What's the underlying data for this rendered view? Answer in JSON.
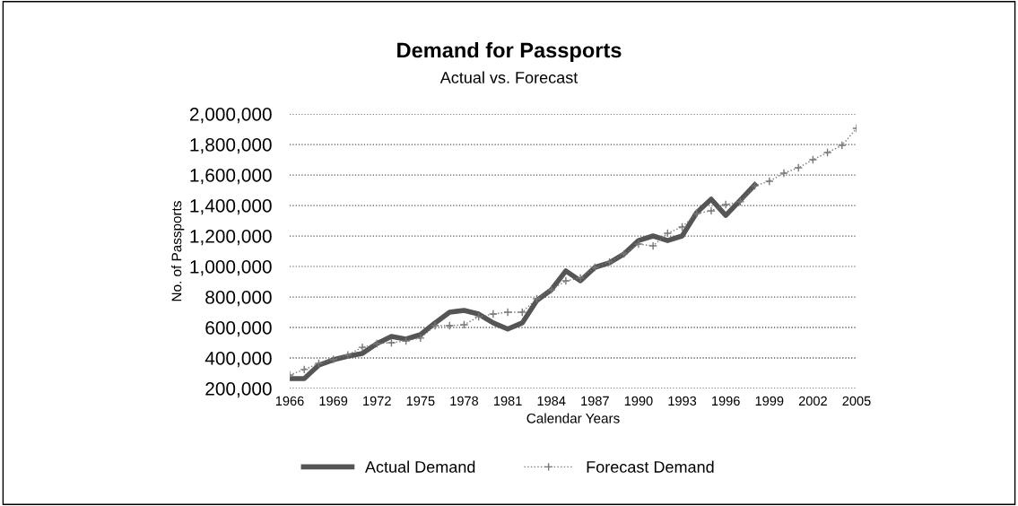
{
  "chart_data": {
    "type": "line",
    "title": "Demand for Passports",
    "subtitle": "Actual vs. Forecast",
    "xlabel": "Calendar Years",
    "ylabel": "No. of Passports",
    "x": [
      1966,
      1967,
      1968,
      1969,
      1970,
      1971,
      1972,
      1973,
      1974,
      1975,
      1976,
      1977,
      1978,
      1979,
      1980,
      1981,
      1982,
      1983,
      1984,
      1985,
      1986,
      1987,
      1988,
      1989,
      1990,
      1991,
      1992,
      1993,
      1994,
      1995,
      1996,
      1997,
      1998,
      1999,
      2000,
      2001,
      2002,
      2003,
      2004,
      2005
    ],
    "series": [
      {
        "name": "Actual Demand",
        "color": "#555555",
        "line_style": "solid",
        "marker": "none",
        "values": [
          265000,
          265000,
          353000,
          388000,
          412000,
          430000,
          494000,
          541000,
          524000,
          553000,
          630000,
          700000,
          712000,
          688000,
          630000,
          590000,
          630000,
          776000,
          847000,
          971000,
          906000,
          994000,
          1024000,
          1082000,
          1170000,
          1200000,
          1170000,
          1200000,
          1353000,
          1441000,
          1335000,
          1435000,
          1535000,
          null,
          null,
          null,
          null,
          null,
          null,
          null
        ]
      },
      {
        "name": "Forecast Demand",
        "color": "#777777",
        "line_style": "dotted",
        "marker": "cross",
        "values": [
          288000,
          324000,
          365000,
          390000,
          420000,
          470000,
          494000,
          500000,
          512000,
          530000,
          612000,
          612000,
          618000,
          670000,
          688000,
          700000,
          700000,
          788000,
          847000,
          906000,
          924000,
          994000,
          1029000,
          1082000,
          1147000,
          1135000,
          1218000,
          1259000,
          1347000,
          1365000,
          1406000,
          1424000,
          1529000,
          1559000,
          1612000,
          1647000,
          1700000,
          1747000,
          1794000,
          1906000
        ]
      }
    ],
    "xlim": [
      1966,
      2005
    ],
    "xticks": [
      1966,
      1969,
      1972,
      1975,
      1978,
      1981,
      1984,
      1987,
      1990,
      1993,
      1996,
      1999,
      2002,
      2005
    ],
    "ylim": [
      200000,
      2000000
    ],
    "yticks": [
      {
        "value": 200000,
        "label": "200,000"
      },
      {
        "value": 400000,
        "label": "400,000"
      },
      {
        "value": 600000,
        "label": "600,000"
      },
      {
        "value": 800000,
        "label": "800,000"
      },
      {
        "value": 1000000,
        "label": "1,000,000"
      },
      {
        "value": 1200000,
        "label": "1,200,000"
      },
      {
        "value": 1400000,
        "label": "1,400,000"
      },
      {
        "value": 1600000,
        "label": "1,600,000"
      },
      {
        "value": 1800000,
        "label": "1,800,000"
      },
      {
        "value": 2000000,
        "label": "2,000,000"
      }
    ],
    "grid": "y",
    "legend": "bottom"
  }
}
